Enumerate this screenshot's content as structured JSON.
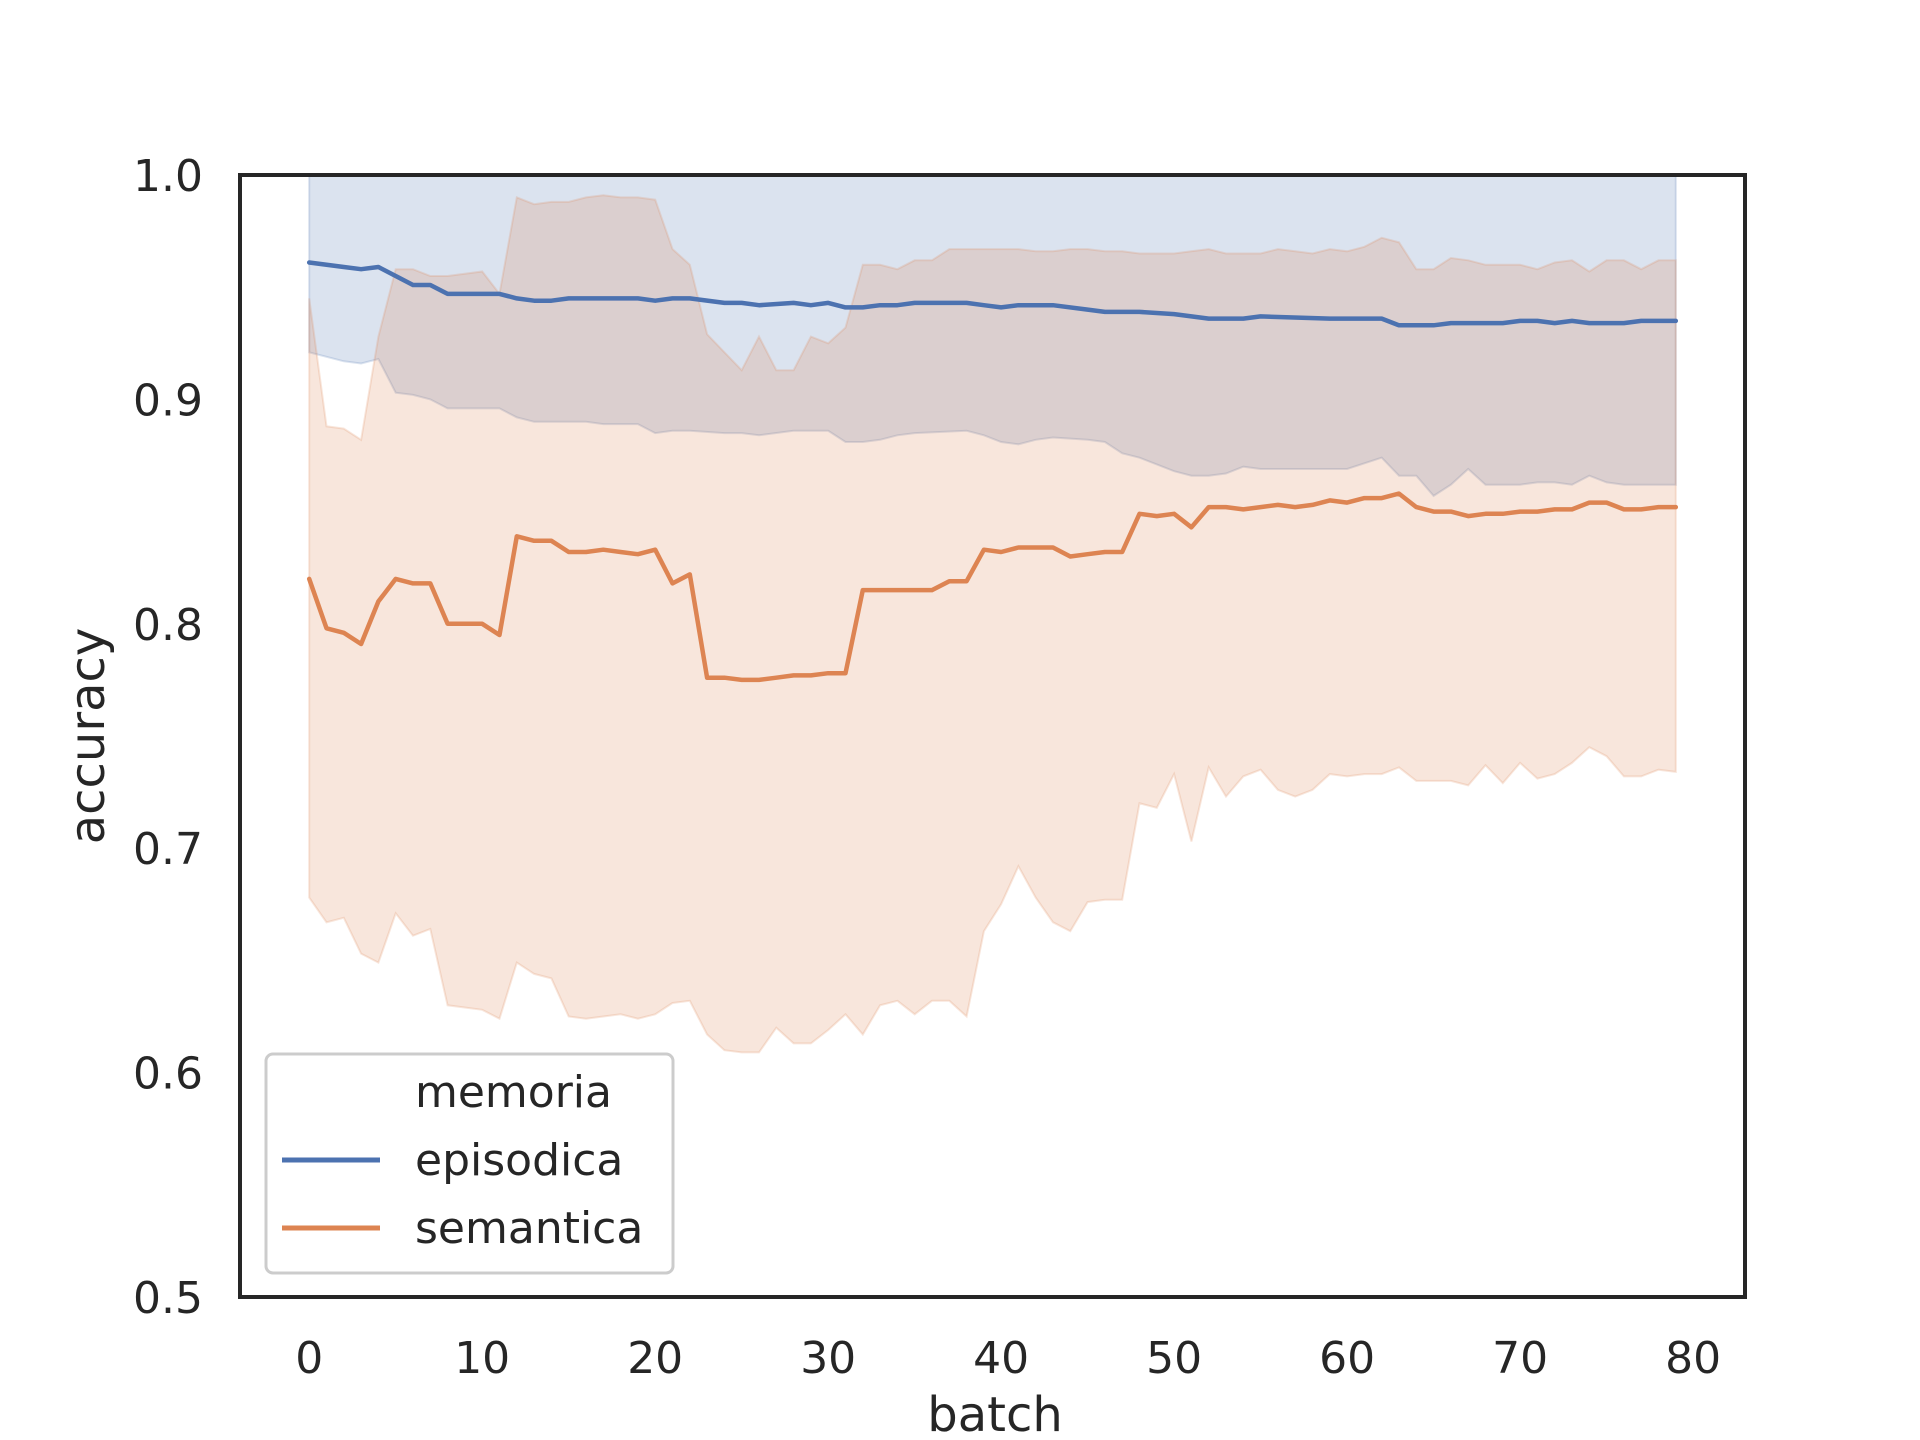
{
  "chart_data": {
    "type": "line",
    "xlabel": "batch",
    "ylabel": "accuracy",
    "xlim": [
      -4,
      83
    ],
    "ylim": [
      0.5,
      1.0
    ],
    "xticks": [
      0,
      10,
      20,
      30,
      40,
      50,
      60,
      70,
      80
    ],
    "yticks": [
      0.5,
      0.6,
      0.7,
      0.8,
      0.9,
      1.0
    ],
    "xtick_labels": [
      "0",
      "10",
      "20",
      "30",
      "40",
      "50",
      "60",
      "70",
      "80"
    ],
    "ytick_labels": [
      "0.5",
      "0.6",
      "0.7",
      "0.8",
      "0.9",
      "1.0"
    ],
    "grid": false,
    "legend": {
      "title": "memoria",
      "placement": "lower-left"
    },
    "series": [
      {
        "name": "episodica",
        "color": "#4c72b0",
        "x": [
          0,
          2,
          3,
          4,
          5,
          6,
          7,
          8,
          10,
          11,
          12,
          13,
          14,
          15,
          16,
          17,
          18,
          19,
          20,
          21,
          22,
          24,
          25,
          26,
          28,
          29,
          30,
          31,
          32,
          33,
          34,
          35,
          38,
          39,
          40,
          41,
          42,
          43,
          45,
          46,
          47,
          48,
          50,
          51,
          52,
          53,
          54,
          55,
          59,
          60,
          62,
          63,
          64,
          65,
          66,
          67,
          68,
          69,
          70,
          71,
          72,
          73,
          74,
          75,
          76,
          77,
          79
        ],
        "mean": [
          0.961,
          0.959,
          0.958,
          0.959,
          0.955,
          0.951,
          0.951,
          0.947,
          0.947,
          0.947,
          0.945,
          0.944,
          0.944,
          0.945,
          0.945,
          0.945,
          0.945,
          0.945,
          0.944,
          0.945,
          0.945,
          0.943,
          0.943,
          0.942,
          0.943,
          0.942,
          0.943,
          0.941,
          0.941,
          0.942,
          0.942,
          0.943,
          0.943,
          0.942,
          0.941,
          0.942,
          0.942,
          0.942,
          0.94,
          0.939,
          0.939,
          0.939,
          0.938,
          0.937,
          0.936,
          0.936,
          0.936,
          0.937,
          0.936,
          0.936,
          0.936,
          0.933,
          0.933,
          0.933,
          0.934,
          0.934,
          0.934,
          0.934,
          0.935,
          0.935,
          0.934,
          0.935,
          0.934,
          0.934,
          0.934,
          0.935,
          0.935
        ],
        "lower": [
          0.921,
          0.917,
          0.916,
          0.918,
          0.903,
          0.902,
          0.9,
          0.896,
          0.896,
          0.896,
          0.892,
          0.89,
          0.89,
          0.89,
          0.89,
          0.889,
          0.889,
          0.889,
          0.885,
          0.886,
          0.886,
          0.885,
          0.885,
          0.884,
          0.886,
          0.886,
          0.886,
          0.881,
          0.881,
          0.882,
          0.884,
          0.885,
          0.886,
          0.884,
          0.881,
          0.88,
          0.882,
          0.883,
          0.882,
          0.881,
          0.876,
          0.874,
          0.868,
          0.866,
          0.866,
          0.867,
          0.87,
          0.869,
          0.869,
          0.869,
          0.874,
          0.866,
          0.866,
          0.857,
          0.862,
          0.869,
          0.862,
          0.862,
          0.862,
          0.863,
          0.863,
          0.862,
          0.866,
          0.863,
          0.862,
          0.862,
          0.862
        ],
        "upper": [
          1.0,
          1.0,
          1.0,
          1.0,
          1.0,
          1.0,
          1.0,
          1.0,
          1.0,
          1.0,
          1.0,
          1.0,
          1.0,
          1.0,
          1.0,
          1.0,
          1.0,
          1.0,
          1.0,
          1.0,
          1.0,
          1.0,
          1.0,
          1.0,
          1.0,
          1.0,
          1.0,
          1.0,
          1.0,
          1.0,
          1.0,
          1.0,
          1.0,
          1.0,
          1.0,
          1.0,
          1.0,
          1.0,
          1.0,
          1.0,
          1.0,
          1.0,
          1.0,
          1.0,
          1.0,
          1.0,
          1.0,
          1.0,
          1.0,
          1.0,
          1.0,
          1.0,
          1.0,
          1.0,
          1.0,
          1.0,
          1.0,
          1.0,
          1.0,
          1.0,
          1.0,
          1.0,
          1.0,
          1.0,
          1.0,
          1.0,
          1.0
        ]
      },
      {
        "name": "semantica",
        "color": "#dd8452",
        "x": [
          0,
          1,
          2,
          3,
          4,
          5,
          6,
          7,
          8,
          10,
          11,
          12,
          13,
          14,
          15,
          16,
          17,
          18,
          19,
          20,
          21,
          22,
          23,
          24,
          25,
          26,
          27,
          28,
          29,
          30,
          31,
          32,
          33,
          34,
          35,
          36,
          37,
          38,
          39,
          40,
          41,
          42,
          43,
          44,
          45,
          46,
          47,
          48,
          49,
          50,
          51,
          52,
          53,
          54,
          55,
          56,
          57,
          58,
          59,
          60,
          61,
          62,
          63,
          64,
          65,
          66,
          67,
          68,
          69,
          70,
          71,
          72,
          73,
          74,
          75,
          76,
          77,
          78,
          79
        ],
        "mean": [
          0.82,
          0.798,
          0.796,
          0.791,
          0.81,
          0.82,
          0.818,
          0.818,
          0.8,
          0.8,
          0.795,
          0.839,
          0.837,
          0.837,
          0.832,
          0.832,
          0.833,
          0.832,
          0.831,
          0.833,
          0.818,
          0.822,
          0.776,
          0.776,
          0.775,
          0.775,
          0.776,
          0.777,
          0.777,
          0.778,
          0.778,
          0.815,
          0.815,
          0.815,
          0.815,
          0.815,
          0.819,
          0.819,
          0.833,
          0.832,
          0.834,
          0.834,
          0.834,
          0.83,
          0.831,
          0.832,
          0.832,
          0.849,
          0.848,
          0.849,
          0.843,
          0.852,
          0.852,
          0.851,
          0.852,
          0.853,
          0.852,
          0.853,
          0.855,
          0.854,
          0.856,
          0.856,
          0.858,
          0.852,
          0.85,
          0.85,
          0.848,
          0.849,
          0.849,
          0.85,
          0.85,
          0.851,
          0.851,
          0.854,
          0.854,
          0.851,
          0.851,
          0.852,
          0.852
        ],
        "lower": [
          0.678,
          0.667,
          0.669,
          0.653,
          0.649,
          0.671,
          0.661,
          0.664,
          0.63,
          0.628,
          0.624,
          0.649,
          0.644,
          0.642,
          0.625,
          0.624,
          0.625,
          0.626,
          0.624,
          0.626,
          0.631,
          0.632,
          0.617,
          0.61,
          0.609,
          0.609,
          0.62,
          0.613,
          0.613,
          0.619,
          0.626,
          0.617,
          0.63,
          0.632,
          0.626,
          0.632,
          0.632,
          0.625,
          0.663,
          0.675,
          0.692,
          0.678,
          0.667,
          0.663,
          0.676,
          0.677,
          0.677,
          0.72,
          0.718,
          0.733,
          0.703,
          0.736,
          0.723,
          0.732,
          0.735,
          0.726,
          0.723,
          0.726,
          0.733,
          0.732,
          0.733,
          0.733,
          0.736,
          0.73,
          0.73,
          0.73,
          0.728,
          0.737,
          0.729,
          0.738,
          0.731,
          0.733,
          0.738,
          0.745,
          0.741,
          0.732,
          0.732,
          0.735,
          0.734
        ],
        "upper": [
          0.945,
          0.888,
          0.887,
          0.882,
          0.928,
          0.958,
          0.958,
          0.955,
          0.955,
          0.957,
          0.947,
          0.99,
          0.987,
          0.988,
          0.988,
          0.99,
          0.991,
          0.99,
          0.99,
          0.989,
          0.967,
          0.96,
          0.929,
          0.921,
          0.913,
          0.928,
          0.913,
          0.913,
          0.928,
          0.925,
          0.932,
          0.96,
          0.96,
          0.958,
          0.962,
          0.962,
          0.967,
          0.967,
          0.967,
          0.967,
          0.967,
          0.966,
          0.966,
          0.967,
          0.967,
          0.966,
          0.966,
          0.965,
          0.965,
          0.965,
          0.966,
          0.967,
          0.965,
          0.965,
          0.965,
          0.967,
          0.966,
          0.965,
          0.967,
          0.966,
          0.968,
          0.972,
          0.97,
          0.958,
          0.958,
          0.963,
          0.962,
          0.96,
          0.96,
          0.96,
          0.958,
          0.961,
          0.962,
          0.957,
          0.962,
          0.962,
          0.958,
          0.962,
          0.962
        ]
      }
    ]
  }
}
